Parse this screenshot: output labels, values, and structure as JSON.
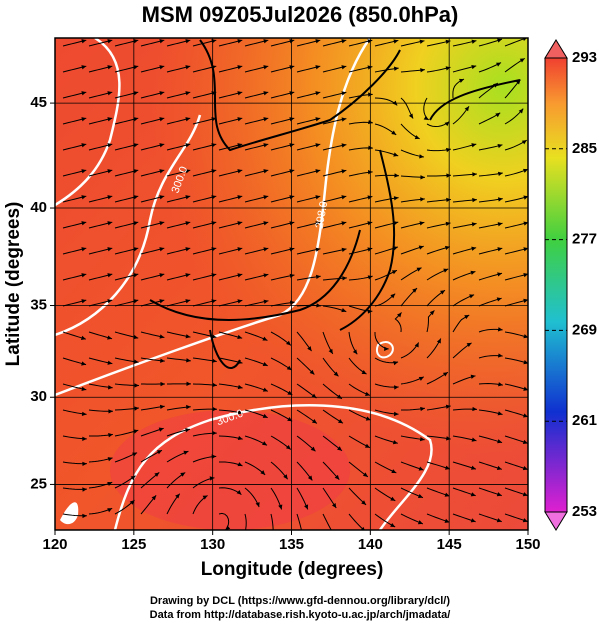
{
  "title": "MSM 09Z05Jul2026 (850.0hPa)",
  "x_axis": {
    "label": "Longitude (degrees)",
    "lim": [
      120,
      150
    ],
    "ticks": [
      120,
      125,
      130,
      135,
      140,
      145,
      150
    ]
  },
  "y_axis": {
    "label": "Latitude  (degrees)",
    "lim": [
      22.3,
      47.9
    ],
    "ticks": [
      25,
      30,
      35,
      40,
      45
    ],
    "projection": "mercator"
  },
  "colorbar": {
    "lim": [
      253,
      293
    ],
    "ticks": [
      253,
      261,
      269,
      277,
      285,
      293
    ]
  },
  "contour_labels": [
    "300.0",
    "298.0",
    "300.0"
  ],
  "credits": [
    "Drawing by DCL (https://www.gfd-dennou.org/library/dcl/)",
    "Data from http://database.rish.kyoto-u.ac.jp/arch/jmadata/"
  ]
}
